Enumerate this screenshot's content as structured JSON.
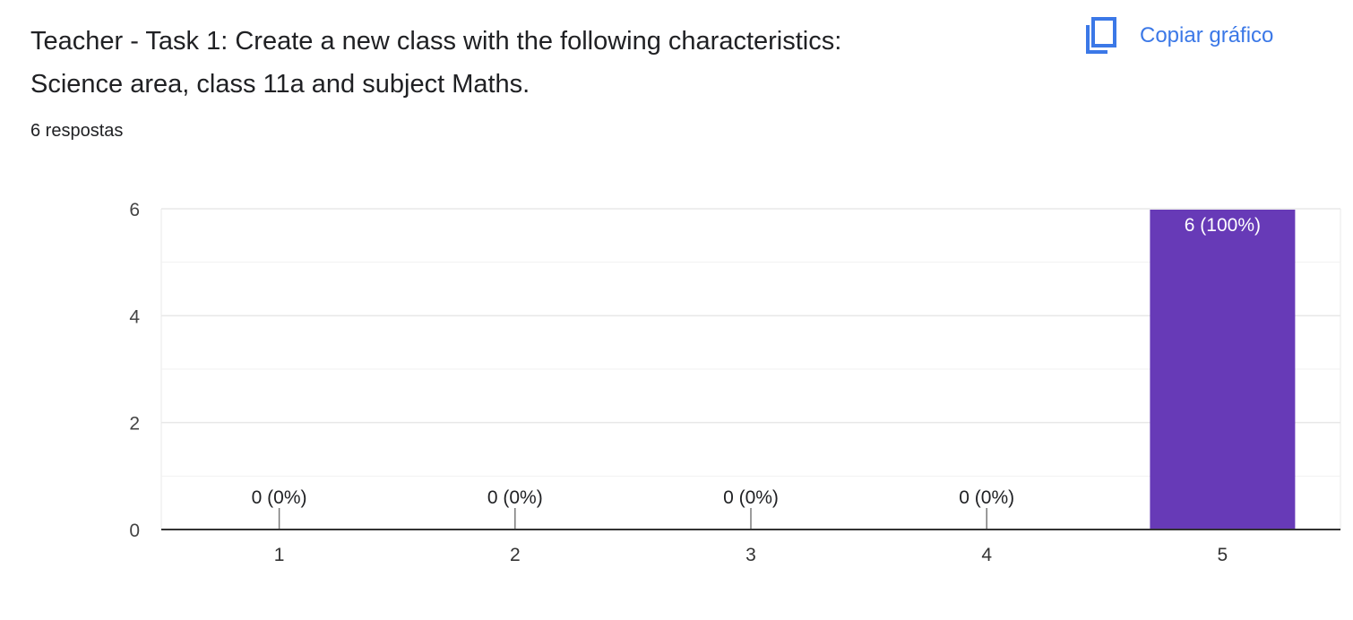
{
  "header": {
    "title_line1": "Teacher - Task 1: Create a new class with the following characteristics:",
    "title_line2": "Science area, class 11a and subject Maths.",
    "responses": "6 respostas",
    "copy_label": "Copiar gráfico",
    "copy_icon": "copy-icon"
  },
  "colors": {
    "bar": "#673ab7",
    "accent": "#3b78e7",
    "grid": "#e8e8e8",
    "axis": "#333333",
    "text": "#202124"
  },
  "chart_data": {
    "type": "bar",
    "categories": [
      "1",
      "2",
      "3",
      "4",
      "5"
    ],
    "values": [
      0,
      0,
      0,
      0,
      6
    ],
    "data_labels": [
      "0 (0%)",
      "0 (0%)",
      "0 (0%)",
      "0 (0%)",
      "6 (100%)"
    ],
    "yticks": [
      0,
      2,
      4,
      6
    ],
    "ylim": [
      0,
      6
    ],
    "minor_gridlines": [
      1,
      3,
      5
    ],
    "grid": true,
    "legend": "none"
  }
}
